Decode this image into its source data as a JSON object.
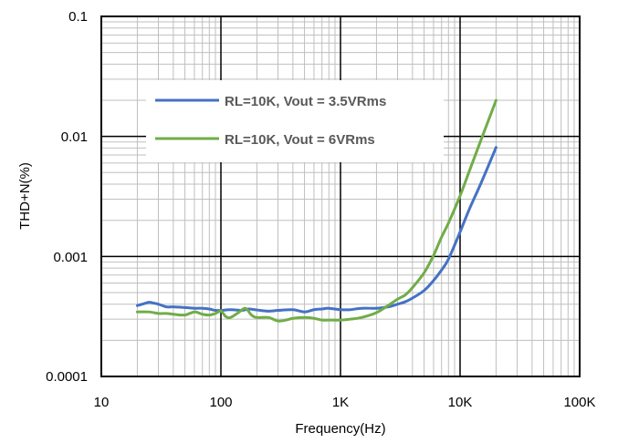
{
  "chart_data": {
    "type": "line",
    "title": "",
    "xlabel": "Frequency(Hz)",
    "ylabel": "THD+N(%)",
    "x_scale": "log",
    "y_scale": "log",
    "xlim": [
      10,
      100000
    ],
    "ylim": [
      0.0001,
      0.1
    ],
    "x_tick_labels": [
      "10",
      "100",
      "1K",
      "10K",
      "100K"
    ],
    "y_tick_labels": [
      "0.0001",
      "0.001",
      "0.01",
      "0.1"
    ],
    "grid": true,
    "legend_position": "upper-left inside plot",
    "series": [
      {
        "name": "RL=10K, Vout = 3.5VRms",
        "color": "#4472C4",
        "x": [
          20,
          22,
          25,
          27,
          30,
          35,
          40,
          50,
          60,
          70,
          80,
          90,
          100,
          120,
          150,
          170,
          200,
          250,
          300,
          400,
          500,
          600,
          700,
          800,
          1000,
          1200,
          1500,
          2000,
          2500,
          3000,
          3500,
          4000,
          5000,
          6000,
          7000,
          8000,
          10000,
          12000,
          15000,
          20000
        ],
        "y": [
          0.00039,
          0.0004,
          0.000415,
          0.00041,
          0.0004,
          0.00038,
          0.00038,
          0.000375,
          0.00037,
          0.00037,
          0.000365,
          0.000355,
          0.000355,
          0.00036,
          0.000355,
          0.000365,
          0.000358,
          0.00035,
          0.000355,
          0.00036,
          0.000345,
          0.00036,
          0.000365,
          0.00037,
          0.00036,
          0.00036,
          0.00037,
          0.00037,
          0.00038,
          0.0004,
          0.00042,
          0.00045,
          0.00052,
          0.00063,
          0.00077,
          0.00095,
          0.0016,
          0.0025,
          0.0041,
          0.0081
        ]
      },
      {
        "name": "RL=10K, Vout = 6VRms",
        "color": "#70AD47",
        "x": [
          20,
          25,
          30,
          35,
          40,
          50,
          60,
          70,
          80,
          90,
          100,
          110,
          120,
          140,
          160,
          180,
          200,
          250,
          300,
          350,
          400,
          500,
          600,
          700,
          800,
          1000,
          1200,
          1500,
          2000,
          2500,
          3000,
          3500,
          4000,
          5000,
          6000,
          7000,
          8000,
          10000,
          12000,
          15000,
          20000
        ],
        "y": [
          0.000345,
          0.000345,
          0.000335,
          0.000335,
          0.00033,
          0.000325,
          0.000345,
          0.00033,
          0.000325,
          0.000335,
          0.00035,
          0.000315,
          0.00031,
          0.00034,
          0.00037,
          0.000325,
          0.00031,
          0.00031,
          0.00029,
          0.000295,
          0.000305,
          0.00031,
          0.000305,
          0.000295,
          0.000295,
          0.000295,
          0.0003,
          0.00031,
          0.00034,
          0.00039,
          0.00044,
          0.00048,
          0.00055,
          0.00073,
          0.00102,
          0.00145,
          0.0019,
          0.0032,
          0.0052,
          0.0094,
          0.02
        ]
      }
    ]
  }
}
